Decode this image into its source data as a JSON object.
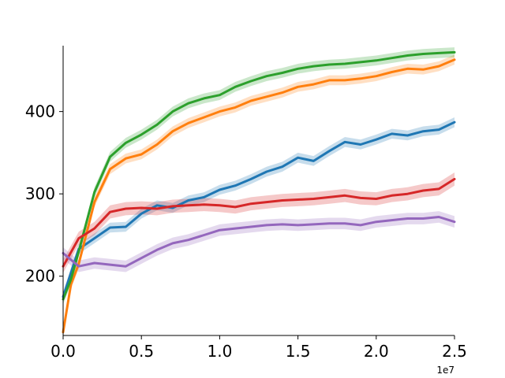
{
  "chart_data": {
    "type": "line",
    "title": "",
    "xlabel": "",
    "ylabel": "",
    "x_offset_label": "1e7",
    "xlim": [
      0,
      2.5
    ],
    "ylim": [
      128,
      480
    ],
    "x_ticks": [
      0.0,
      0.5,
      1.0,
      1.5,
      2.0,
      2.5
    ],
    "x_tick_labels": [
      "0.0",
      "0.5",
      "1.0",
      "1.5",
      "2.0",
      "2.5"
    ],
    "y_ticks": [
      200,
      300,
      400
    ],
    "y_tick_labels": [
      "200",
      "300",
      "400"
    ],
    "grid": false,
    "legend": false,
    "series": [
      {
        "color": "#1f77b4",
        "x": [
          0.0,
          0.1,
          0.2,
          0.3,
          0.4,
          0.5,
          0.6,
          0.7,
          0.8,
          0.9,
          1.0,
          1.1,
          1.2,
          1.3,
          1.4,
          1.5,
          1.6,
          1.7,
          1.8,
          1.9,
          2.0,
          2.1,
          2.2,
          2.3,
          2.4,
          2.5
        ],
        "y": [
          175,
          233,
          246,
          259,
          260,
          276,
          286,
          283,
          292,
          296,
          305,
          310,
          318,
          327,
          333,
          344,
          340,
          352,
          363,
          360,
          366,
          373,
          371,
          376,
          378,
          387
        ],
        "band": 6
      },
      {
        "color": "#ff7f0e",
        "x": [
          0.0,
          0.05,
          0.1,
          0.2,
          0.3,
          0.4,
          0.5,
          0.6,
          0.7,
          0.8,
          0.9,
          1.0,
          1.1,
          1.2,
          1.3,
          1.4,
          1.5,
          1.6,
          1.7,
          1.8,
          1.9,
          2.0,
          2.1,
          2.2,
          2.3,
          2.4,
          2.5
        ],
        "y": [
          132,
          190,
          215,
          290,
          330,
          343,
          348,
          360,
          376,
          386,
          393,
          400,
          405,
          413,
          418,
          423,
          430,
          433,
          438,
          438,
          440,
          443,
          448,
          452,
          451,
          455,
          463
        ],
        "band": 6
      },
      {
        "color": "#2ca02c",
        "x": [
          0.0,
          0.05,
          0.1,
          0.2,
          0.3,
          0.4,
          0.5,
          0.6,
          0.7,
          0.8,
          0.9,
          1.0,
          1.1,
          1.2,
          1.3,
          1.4,
          1.5,
          1.6,
          1.7,
          1.8,
          1.9,
          2.0,
          2.1,
          2.2,
          2.3,
          2.4,
          2.5
        ],
        "y": [
          172,
          196,
          230,
          302,
          345,
          362,
          372,
          384,
          400,
          410,
          416,
          420,
          430,
          437,
          443,
          447,
          452,
          455,
          457,
          458,
          460,
          462,
          465,
          468,
          470,
          471,
          472
        ],
        "band": 6
      },
      {
        "color": "#d62728",
        "x": [
          0.0,
          0.1,
          0.2,
          0.3,
          0.4,
          0.5,
          0.6,
          0.7,
          0.8,
          0.9,
          1.0,
          1.1,
          1.2,
          1.3,
          1.4,
          1.5,
          1.6,
          1.7,
          1.8,
          1.9,
          2.0,
          2.1,
          2.2,
          2.3,
          2.4,
          2.5
        ],
        "y": [
          212,
          246,
          258,
          278,
          282,
          283,
          282,
          285,
          286,
          287,
          286,
          284,
          288,
          290,
          292,
          293,
          294,
          296,
          298,
          295,
          294,
          298,
          300,
          304,
          306,
          318
        ],
        "band": 8
      },
      {
        "color": "#9467bd",
        "x": [
          0.0,
          0.1,
          0.2,
          0.3,
          0.4,
          0.5,
          0.6,
          0.7,
          0.8,
          0.9,
          1.0,
          1.1,
          1.2,
          1.3,
          1.4,
          1.5,
          1.6,
          1.7,
          1.8,
          1.9,
          2.0,
          2.1,
          2.2,
          2.3,
          2.4,
          2.5
        ],
        "y": [
          228,
          212,
          216,
          214,
          212,
          222,
          232,
          240,
          244,
          250,
          256,
          258,
          260,
          262,
          263,
          262,
          263,
          264,
          264,
          262,
          266,
          268,
          270,
          270,
          272,
          266
        ],
        "band": 7
      }
    ]
  }
}
